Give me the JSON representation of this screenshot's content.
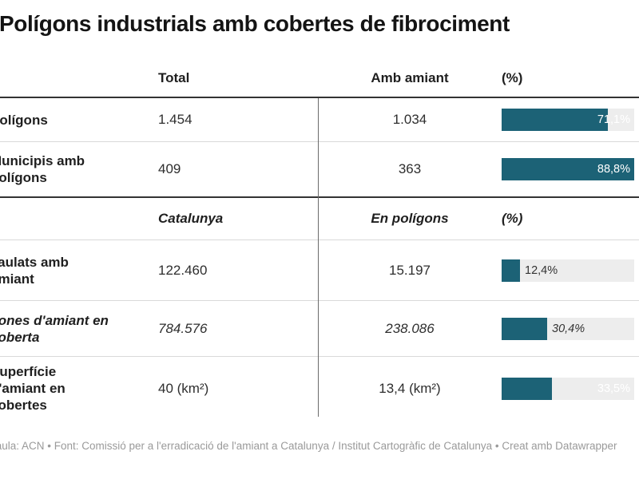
{
  "title": "Polígons industrials amb cobertes de fibrociment",
  "footer": "Taula: ACN • Font: Comissió per a l'erradicació de l'amiant a Catalunya / Institut Cartogràfic de Catalunya  • Creat amb Datawrapper",
  "colors": {
    "bar_fill": "#1c6276",
    "bar_track": "#ededed",
    "thick_border": "#333333",
    "thin_border": "#d9d9d9",
    "footer_text": "#9a9a9a"
  },
  "chart_data": {
    "type": "table",
    "title": "Polígons industrials amb cobertes de fibrociment",
    "bar_axis_max": 88.8,
    "bars_scaled_to_max": true,
    "sections": [
      {
        "header": {
          "col2": "Total",
          "col3": "Amb amiant",
          "col4": "(%)",
          "italic": false
        },
        "rows": [
          {
            "label": "Polígons",
            "col2": "1.454",
            "col3": "1.034",
            "pct_label": "71,1%",
            "pct_value": 71.1,
            "italic": false,
            "min_height": 54
          },
          {
            "label": "Municipis amb polígons",
            "col2": "409",
            "col3": "363",
            "pct_label": "88,8%",
            "pct_value": 88.8,
            "italic": false,
            "min_height": 68,
            "last_of_section": true
          }
        ]
      },
      {
        "header": {
          "col2": "Catalunya",
          "col3": "En polígons",
          "col4": "(%)",
          "italic": true
        },
        "rows": [
          {
            "label": "Taulats amb amiant",
            "col2": "122.460",
            "col3": "15.197",
            "pct_label": "12,4%",
            "pct_value": 12.4,
            "italic": false,
            "min_height": 75
          },
          {
            "label": "Tones d'amiant en coberta",
            "col2": "784.576",
            "col3": "238.086",
            "pct_label": "30,4%",
            "pct_value": 30.4,
            "italic": true,
            "min_height": 69
          },
          {
            "label": "Superfície d'amiant en cobertes",
            "col2": "40 (km²)",
            "col3": "13,4 (km²)",
            "pct_label": "33,5%",
            "pct_value": 33.5,
            "italic": false,
            "min_height": 79,
            "last_of_section": true
          }
        ]
      }
    ]
  }
}
